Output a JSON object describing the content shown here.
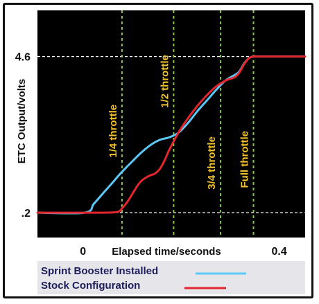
{
  "chart_data": {
    "type": "line",
    "title": "",
    "xlabel": "Elapsed time/seconds",
    "ylabel": "ETC Output/volts",
    "xlim": [
      -0.1,
      0.47
    ],
    "ylim": [
      -0.5,
      5.9
    ],
    "x_ticks": [
      {
        "value": 0,
        "label": "0"
      },
      {
        "value": 0.4,
        "label": "0.4"
      }
    ],
    "y_ticks": [
      {
        "value": 0.2,
        "label": ".2"
      },
      {
        "value": 4.6,
        "label": "4.6"
      }
    ],
    "grid": false,
    "background": "#000000",
    "reference_lines": [
      {
        "axis": "y",
        "value": 4.6,
        "style": "dashed",
        "color": "#ffffff"
      },
      {
        "axis": "y",
        "value": 0.2,
        "style": "dashed",
        "color": "#ffffff"
      }
    ],
    "markers": [
      {
        "x": 0.08,
        "label": "1/4 throttle",
        "label_y": 2.5
      },
      {
        "x": 0.19,
        "label": "1/2 throttle",
        "label_y": 3.9
      },
      {
        "x": 0.29,
        "label": "3/4 throttle",
        "label_y": 1.6
      },
      {
        "x": 0.36,
        "label": "Full throttle",
        "label_y": 1.7
      }
    ],
    "marker_color": "#8bc34a",
    "marker_label_color": "#f2c12e",
    "legend": {
      "position": "bottom",
      "entries": [
        "Sprint Booster Installed",
        "Stock Configuration"
      ]
    },
    "series": [
      {
        "name": "Sprint Booster Installed",
        "color": "#5bc8f5",
        "x": [
          -0.1,
          0.0,
          0.02,
          0.04,
          0.06,
          0.08,
          0.1,
          0.12,
          0.14,
          0.16,
          0.18,
          0.2,
          0.22,
          0.24,
          0.26,
          0.28,
          0.3,
          0.32,
          0.33,
          0.34,
          0.35,
          0.36,
          0.37,
          0.47
        ],
        "y": [
          0.2,
          0.2,
          0.45,
          0.75,
          1.05,
          1.35,
          1.62,
          1.88,
          2.1,
          2.25,
          2.32,
          2.45,
          2.72,
          3.05,
          3.35,
          3.65,
          3.92,
          4.08,
          4.18,
          4.4,
          4.55,
          4.6,
          4.6,
          4.6
        ]
      },
      {
        "name": "Stock Configuration",
        "color": "#e3262e",
        "x": [
          -0.1,
          0.0,
          0.04,
          0.07,
          0.08,
          0.09,
          0.1,
          0.11,
          0.12,
          0.13,
          0.14,
          0.15,
          0.16,
          0.17,
          0.18,
          0.2,
          0.22,
          0.24,
          0.26,
          0.28,
          0.3,
          0.32,
          0.33,
          0.34,
          0.35,
          0.36,
          0.37,
          0.47
        ],
        "y": [
          0.2,
          0.2,
          0.2,
          0.22,
          0.32,
          0.48,
          0.68,
          0.9,
          1.08,
          1.18,
          1.25,
          1.3,
          1.42,
          1.65,
          1.95,
          2.45,
          2.85,
          3.2,
          3.5,
          3.75,
          3.92,
          4.02,
          4.15,
          4.38,
          4.55,
          4.6,
          4.6,
          4.6
        ]
      }
    ]
  }
}
